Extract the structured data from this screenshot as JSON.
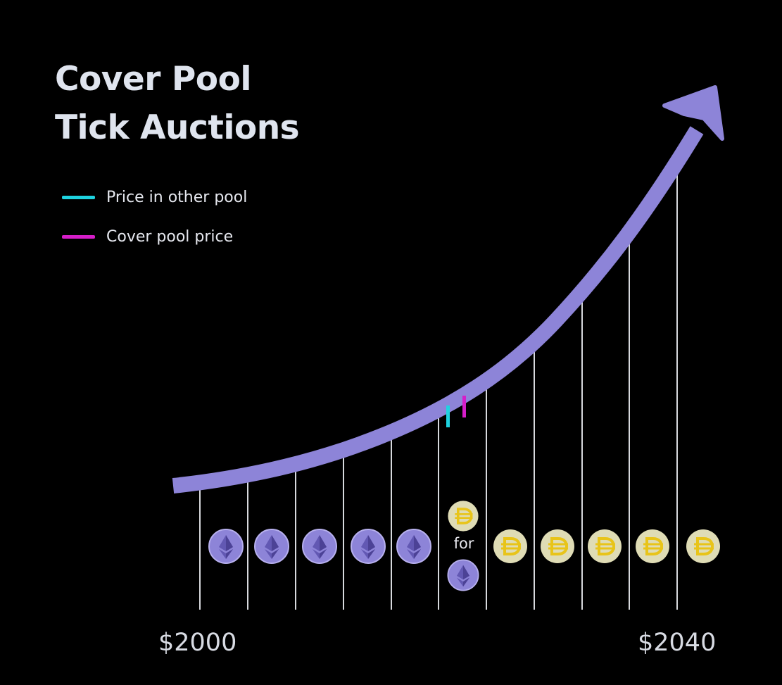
{
  "title": {
    "line1": "Cover Pool",
    "line2": "Tick Auctions"
  },
  "legend": [
    {
      "label": "Price in other pool",
      "color": "#1ed3e0"
    },
    {
      "label": "Cover pool price",
      "color": "#d61ec9"
    }
  ],
  "axis": {
    "start_label": "$2000",
    "end_label": "$2040"
  },
  "swap_label": "for",
  "tick_count": 11,
  "token_row": {
    "eth_count": 5,
    "dai_count": 5,
    "auction_tick": "DAI for ETH"
  },
  "colors": {
    "background": "#000000",
    "curve": "#8d84d8",
    "tick_line": "#d7d9dd",
    "eth_coin": "#8d84d8",
    "dai_coin": "#dfdcb5",
    "dai_symbol": "#e8c419",
    "other_pool_price": "#1ed3e0",
    "cover_pool_price": "#d61ec9"
  },
  "icons": [
    "ethereum-icon",
    "dai-icon",
    "arrow-head-icon"
  ]
}
